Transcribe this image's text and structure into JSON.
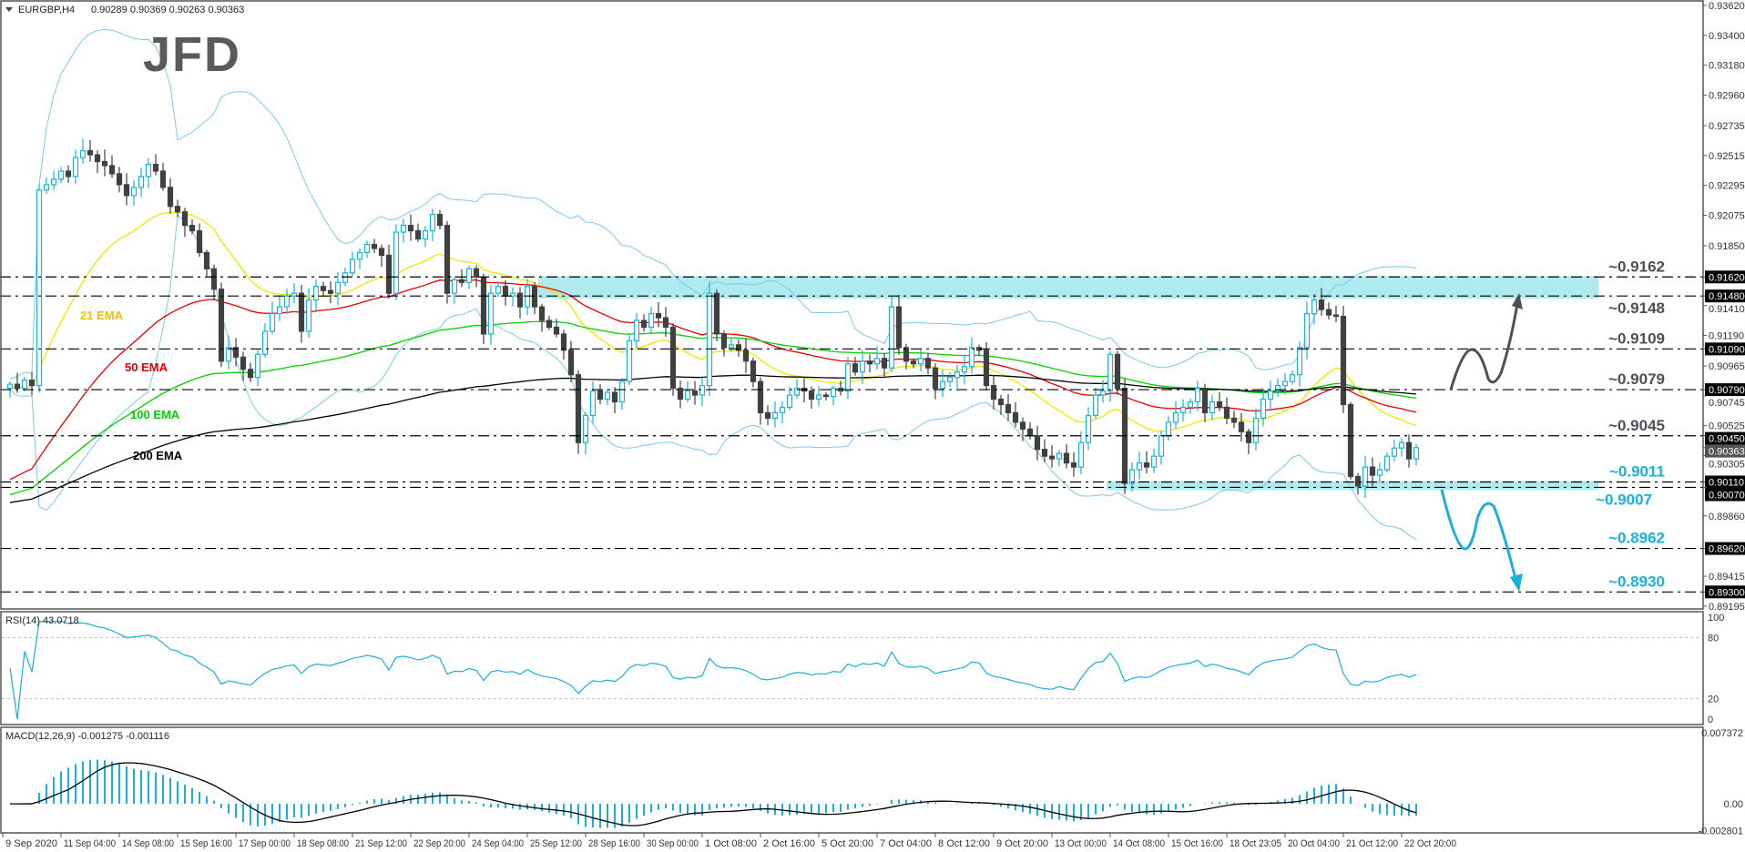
{
  "header": {
    "symbol": "EURGBP,H4",
    "ohlc": "0.90289 0.90369 0.90263 0.90363"
  },
  "logo": "JFD",
  "colors": {
    "bull": "#1ab0d8",
    "bear": "#404040",
    "zone": "#aeeaee",
    "bands": "#7cc8ee",
    "ema21": "#f2e600",
    "ema50": "#e80000",
    "ema100": "#00d000",
    "ema200": "#000000",
    "level_dark": "#4b5157",
    "level_cyan": "#1ab0d8",
    "rsi": "#1ab0d8",
    "macd_hist": "#1ab0d8",
    "macd_signal": "#000000"
  },
  "chart_data": {
    "type": "candlestick",
    "symbol": "EURGBP",
    "timeframe": "H4",
    "ylim": [
      0.89195,
      0.9362
    ],
    "closes": [
      0.9083,
      0.908,
      0.9086,
      0.9082,
      0.9226,
      0.923,
      0.9234,
      0.924,
      0.9236,
      0.925,
      0.9255,
      0.9252,
      0.9247,
      0.9244,
      0.9238,
      0.923,
      0.9222,
      0.9228,
      0.9236,
      0.9245,
      0.924,
      0.9228,
      0.9214,
      0.921,
      0.92,
      0.9196,
      0.918,
      0.9168,
      0.9153,
      0.91,
      0.911,
      0.9103,
      0.9094,
      0.9088,
      0.9105,
      0.9122,
      0.9135,
      0.914,
      0.9148,
      0.915,
      0.9122,
      0.9145,
      0.9155,
      0.9152,
      0.915,
      0.9158,
      0.9165,
      0.9175,
      0.918,
      0.9186,
      0.9183,
      0.9178,
      0.915,
      0.9195,
      0.92,
      0.9196,
      0.919,
      0.9196,
      0.9208,
      0.92,
      0.915,
      0.916,
      0.9158,
      0.9168,
      0.9162,
      0.912,
      0.915,
      0.9155,
      0.9148,
      0.915,
      0.914,
      0.9155,
      0.914,
      0.913,
      0.9125,
      0.912,
      0.9108,
      0.909,
      0.904,
      0.906,
      0.9078,
      0.9072,
      0.9077,
      0.907,
      0.9085,
      0.9115,
      0.913,
      0.9125,
      0.9135,
      0.9132,
      0.9125,
      0.908,
      0.9072,
      0.9078,
      0.9075,
      0.9082,
      0.915,
      0.912,
      0.911,
      0.9112,
      0.9108,
      0.91,
      0.9085,
      0.9062,
      0.9058,
      0.9062,
      0.9066,
      0.9075,
      0.908,
      0.9078,
      0.9072,
      0.9075,
      0.9074,
      0.908,
      0.9078,
      0.9098,
      0.9092,
      0.91,
      0.9098,
      0.9102,
      0.9095,
      0.914,
      0.911,
      0.91,
      0.9098,
      0.9102,
      0.9095,
      0.908,
      0.9085,
      0.9088,
      0.9092,
      0.9096,
      0.911,
      0.9108,
      0.9082,
      0.9072,
      0.9068,
      0.9062,
      0.9055,
      0.905,
      0.9045,
      0.9035,
      0.903,
      0.9028,
      0.9032,
      0.9025,
      0.9022,
      0.904,
      0.906,
      0.9075,
      0.9078,
      0.9105,
      0.908,
      0.901,
      0.902,
      0.9025,
      0.9022,
      0.903,
      0.9045,
      0.9055,
      0.9062,
      0.9066,
      0.907,
      0.908,
      0.9062,
      0.907,
      0.9066,
      0.9058,
      0.9055,
      0.9048,
      0.904,
      0.9058,
      0.9072,
      0.9078,
      0.9082,
      0.9085,
      0.909,
      0.911,
      0.9135,
      0.9145,
      0.9138,
      0.9134,
      0.9133,
      0.9068,
      0.9015,
      0.9008,
      0.9022,
      0.9016,
      0.902,
      0.903,
      0.9036,
      0.904,
      0.9028,
      0.90363
    ],
    "ema_initial": {
      "21": 0.908,
      "50": 0.901,
      "100": 0.9,
      "200": 0.8995
    },
    "ema_labels": [
      "21 EMA",
      "50 EMA",
      "100 EMA",
      "200 EMA"
    ],
    "levels": [
      {
        "price": 0.9162,
        "label": "~0.9162",
        "color": "dark",
        "position": "above"
      },
      {
        "price": 0.9148,
        "label": "~0.9148",
        "color": "dark",
        "position": "below"
      },
      {
        "price": 0.9109,
        "label": "~0.9109",
        "color": "dark",
        "position": "above"
      },
      {
        "price": 0.9079,
        "label": "~0.9079",
        "color": "dark",
        "position": "above"
      },
      {
        "price": 0.9045,
        "label": "~0.9045",
        "color": "dark",
        "position": "above"
      },
      {
        "price": 0.9011,
        "label": "~0.9011",
        "color": "cyan",
        "position": "above"
      },
      {
        "price": 0.9007,
        "label": "~0.9007",
        "color": "cyan",
        "position": "below"
      },
      {
        "price": 0.8962,
        "label": "~0.8962",
        "color": "cyan",
        "position": "above"
      },
      {
        "price": 0.893,
        "label": "~0.8930",
        "color": "cyan",
        "position": "above"
      }
    ],
    "zones": [
      {
        "from": 0.9148,
        "to": 0.9162
      },
      {
        "from": 0.9007,
        "to": 0.9011
      }
    ],
    "scenario_arrows": [
      "bullish: up to ~0.9148",
      "bearish: down to ~0.8930"
    ],
    "price_axis": [
      {
        "v": "0.93620",
        "k": "n"
      },
      {
        "v": "0.93400",
        "k": "n"
      },
      {
        "v": "0.93180",
        "k": "n"
      },
      {
        "v": "0.92960",
        "k": "n"
      },
      {
        "v": "0.92735",
        "k": "n"
      },
      {
        "v": "0.92515",
        "k": "n"
      },
      {
        "v": "0.92295",
        "k": "n"
      },
      {
        "v": "0.92075",
        "k": "n"
      },
      {
        "v": "0.91850",
        "k": "n"
      },
      {
        "v": "0.91620",
        "k": "h"
      },
      {
        "v": "0.91480",
        "k": "h"
      },
      {
        "v": "0.91410",
        "k": "n"
      },
      {
        "v": "0.91190",
        "k": "n"
      },
      {
        "v": "0.91090",
        "k": "h"
      },
      {
        "v": "0.90965",
        "k": "n"
      },
      {
        "v": "0.90745",
        "k": "n"
      },
      {
        "v": "0.90790",
        "k": "h"
      },
      {
        "v": "0.90525",
        "k": "n"
      },
      {
        "v": "0.90450",
        "k": "h"
      },
      {
        "v": "0.90305",
        "k": "n"
      },
      {
        "v": "0.90363",
        "k": "c"
      },
      {
        "v": "0.90110",
        "k": "h"
      },
      {
        "v": "0.90070",
        "k": "h"
      },
      {
        "v": "0.89860",
        "k": "n"
      },
      {
        "v": "0.89620",
        "k": "h"
      },
      {
        "v": "0.89415",
        "k": "n"
      },
      {
        "v": "0.89300",
        "k": "h"
      },
      {
        "v": "0.89195",
        "k": "n"
      }
    ],
    "time_axis": [
      "9 Sep 2020",
      "11 Sep 04:00",
      "14 Sep 08:00",
      "15 Sep 16:00",
      "17 Sep 00:00",
      "18 Sep 08:00",
      "21 Sep 12:00",
      "22 Sep 20:00",
      "24 Sep 04:00",
      "25 Sep 12:00",
      "28 Sep 16:00",
      "30 Sep 00:00",
      "1 Oct 08:00",
      "2 Oct 16:00",
      "5 Oct 20:00",
      "7 Oct 04:00",
      "8 Oct 12:00",
      "9 Oct 20:00",
      "13 Oct 00:00",
      "14 Oct 08:00",
      "15 Oct 16:00",
      "18 Oct 23:05",
      "20 Oct 04:00",
      "21 Oct 12:00",
      "22 Oct 20:00"
    ],
    "rsi": {
      "label": "RSI(14) 43.0718",
      "axis": [
        "100",
        "80",
        "20",
        "0"
      ],
      "levels": [
        80,
        20
      ],
      "ylim": [
        0,
        100
      ]
    },
    "macd": {
      "label": "MACD(12,26,9) -0.001275 -0.001116",
      "axis": [
        "0.007372",
        "0.00",
        "-0.002801"
      ],
      "ylim": [
        -0.002801,
        0.007372
      ]
    }
  }
}
